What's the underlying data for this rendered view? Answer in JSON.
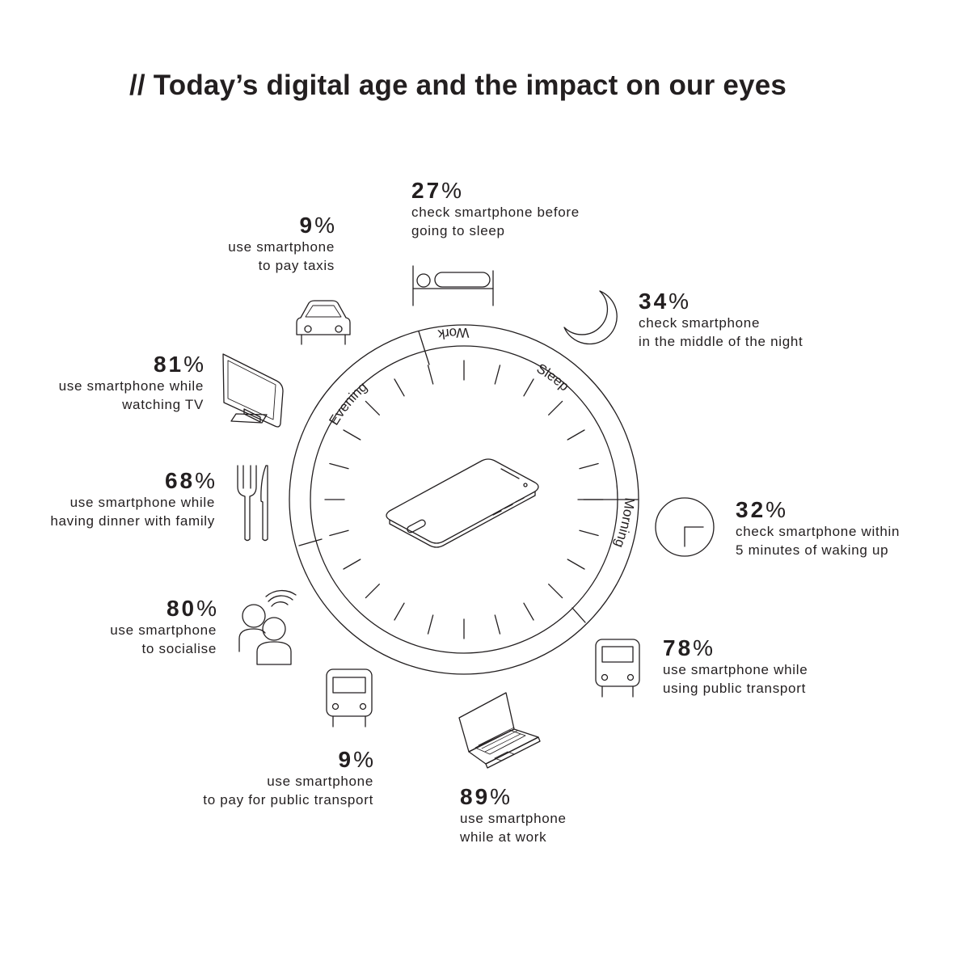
{
  "title": "//  Today’s digital age and the impact on our eyes",
  "clock": {
    "segments": [
      {
        "label": "Sleep",
        "icon": "bed-icon"
      },
      {
        "label": "Morning",
        "icon": "clock-icon"
      },
      {
        "label": "Work",
        "icon": "laptop-icon"
      },
      {
        "label": "Evening",
        "icon": "tv-icon"
      }
    ],
    "center_icon": "smartphone-icon"
  },
  "stats": [
    {
      "id": "sleep",
      "value": "27",
      "unit": "%",
      "lines": [
        "check smartphone before",
        "going to sleep"
      ],
      "icon": "bed-icon"
    },
    {
      "id": "night",
      "value": "34",
      "unit": "%",
      "lines": [
        "check smartphone",
        "in the middle of the night"
      ],
      "icon": "moon-icon"
    },
    {
      "id": "waking",
      "value": "32",
      "unit": "%",
      "lines": [
        "check smartphone within",
        "5 minutes of waking up"
      ],
      "icon": "clock-icon"
    },
    {
      "id": "transport",
      "value": "78",
      "unit": "%",
      "lines": [
        "use smartphone while",
        "using public transport"
      ],
      "icon": "bus-icon"
    },
    {
      "id": "work",
      "value": "89",
      "unit": "%",
      "lines": [
        "use smartphone",
        "while at work"
      ],
      "icon": "laptop-icon"
    },
    {
      "id": "pay-transport",
      "value": "9",
      "unit": "%",
      "lines": [
        "use smartphone",
        "to pay for public transport"
      ],
      "icon": "bus-icon"
    },
    {
      "id": "socialise",
      "value": "80",
      "unit": "%",
      "lines": [
        "use smartphone",
        "to socialise"
      ],
      "icon": "people-wifi-icon"
    },
    {
      "id": "dinner",
      "value": "68",
      "unit": "%",
      "lines": [
        "use smartphone while",
        "having dinner with family"
      ],
      "icon": "cutlery-icon"
    },
    {
      "id": "tv",
      "value": "81",
      "unit": "%",
      "lines": [
        "use smartphone while",
        "watching TV"
      ],
      "icon": "tv-icon"
    },
    {
      "id": "taxi",
      "value": "9",
      "unit": "%",
      "lines": [
        "use smartphone",
        "to pay taxis"
      ],
      "icon": "car-icon"
    }
  ]
}
